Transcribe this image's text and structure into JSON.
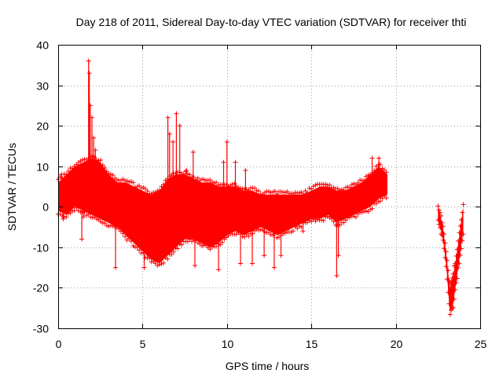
{
  "chart_data": {
    "type": "scatter",
    "title": "Day 218 of 2011, Sidereal Day-to-day VTEC variation (SDTVAR) for receiver thti",
    "xlabel": "GPS time / hours",
    "ylabel": "SDTVAR / TECUs",
    "xlim": [
      0,
      25
    ],
    "ylim": [
      -30,
      40
    ],
    "xticks": [
      0,
      5,
      10,
      15,
      20,
      25
    ],
    "yticks": [
      -30,
      -20,
      -10,
      0,
      10,
      20,
      30,
      40
    ],
    "grid": true,
    "marker": "+",
    "color": "#ff0000",
    "envelope": {
      "x": [
        0,
        0.5,
        1.0,
        1.5,
        2.0,
        2.5,
        3.0,
        3.5,
        4.0,
        4.5,
        5.0,
        5.5,
        6.0,
        6.5,
        7.0,
        7.5,
        8.0,
        8.5,
        9.0,
        9.5,
        10.0,
        10.5,
        11.0,
        11.5,
        12.0,
        12.5,
        13.0,
        13.5,
        14.0,
        14.5,
        15.0,
        15.5,
        16.0,
        16.5,
        17.0,
        17.5,
        18.0,
        18.5,
        19.0,
        19.5
      ],
      "upper": [
        6,
        8,
        10,
        11,
        12,
        11,
        8,
        6,
        6,
        5,
        4,
        3,
        4,
        7,
        8,
        8,
        7,
        6,
        6,
        5,
        5,
        5,
        4,
        4,
        3,
        3,
        3,
        3,
        3,
        3,
        4,
        5,
        5,
        4,
        4,
        5,
        6,
        8,
        10,
        8
      ],
      "lower": [
        -1,
        -2,
        0,
        -1,
        -2,
        -3,
        -4,
        -5,
        -7,
        -9,
        -11,
        -13,
        -14,
        -12,
        -10,
        -8,
        -8,
        -9,
        -10,
        -9,
        -7,
        -6,
        -7,
        -6,
        -5,
        -6,
        -7,
        -6,
        -5,
        -4,
        -3,
        -3,
        -2,
        -4,
        -3,
        -2,
        -1,
        0,
        2,
        3
      ]
    },
    "late_segment": {
      "x": [
        22.5,
        22.8,
        23.0,
        23.2,
        23.4,
        23.6,
        23.8,
        24.0
      ],
      "upper": [
        0,
        -5,
        -12,
        -20,
        -17,
        -12,
        -6,
        0
      ],
      "lower": [
        -3,
        -8,
        -15,
        -26,
        -24,
        -18,
        -12,
        -6
      ]
    },
    "outliers": [
      [
        0.2,
        8
      ],
      [
        0.3,
        -3
      ],
      [
        1.4,
        -8
      ],
      [
        1.5,
        -2.5
      ],
      [
        1.8,
        36
      ],
      [
        1.85,
        33
      ],
      [
        1.9,
        25
      ],
      [
        2.0,
        22
      ],
      [
        2.1,
        17
      ],
      [
        2.2,
        14
      ],
      [
        3.4,
        -15
      ],
      [
        5.1,
        -15
      ],
      [
        6.5,
        22
      ],
      [
        6.6,
        18
      ],
      [
        6.8,
        16
      ],
      [
        7.0,
        23
      ],
      [
        7.2,
        20
      ],
      [
        7.6,
        9
      ],
      [
        8.0,
        13.5
      ],
      [
        8.1,
        -14.5
      ],
      [
        9.5,
        -15.5
      ],
      [
        9.8,
        11
      ],
      [
        10.0,
        16
      ],
      [
        10.5,
        11
      ],
      [
        10.8,
        -14
      ],
      [
        11.1,
        9
      ],
      [
        11.5,
        -14
      ],
      [
        12.2,
        -12
      ],
      [
        12.8,
        -15
      ],
      [
        13.2,
        -12
      ],
      [
        14.5,
        -6
      ],
      [
        16.5,
        -17
      ],
      [
        16.6,
        -12
      ],
      [
        18.6,
        12
      ],
      [
        19.0,
        12
      ]
    ]
  }
}
